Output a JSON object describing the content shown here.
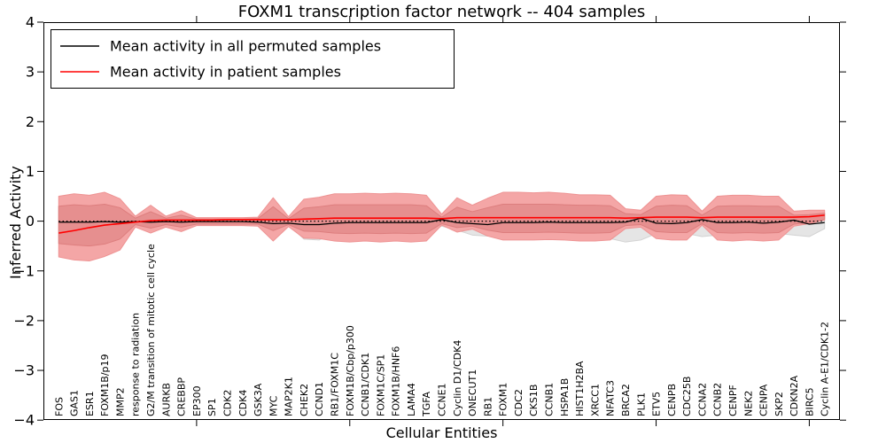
{
  "figure": {
    "title": "FOXM1 transcription factor network -- 404 samples"
  },
  "axes": {
    "xlabel": "Cellular Entities",
    "ylabel": "Inferred Activity",
    "yticks": [
      {
        "value": -4,
        "label": "−4"
      },
      {
        "value": -3,
        "label": "−3"
      },
      {
        "value": -2,
        "label": "−2"
      },
      {
        "value": -1,
        "label": "−1"
      },
      {
        "value": 0,
        "label": "0"
      },
      {
        "value": 1,
        "label": "1"
      },
      {
        "value": 2,
        "label": "2"
      },
      {
        "value": 3,
        "label": "3"
      },
      {
        "value": 4,
        "label": "4"
      }
    ],
    "xtick_data_positions": [
      10,
      20,
      30,
      40,
      50
    ]
  },
  "legend": {
    "items": [
      {
        "label": "Mean activity in all permuted samples",
        "color": "#000000"
      },
      {
        "label": "Mean activity in patient samples",
        "color": "#ff0000"
      }
    ]
  },
  "chart_data": {
    "type": "line",
    "title": "FOXM1 transcription factor network -- 404 samples",
    "xlabel": "Cellular Entities",
    "ylabel": "Inferred Activity",
    "ylim": [
      -4,
      4
    ],
    "xlim": [
      0,
      52
    ],
    "grid": false,
    "legend_position": "upper left",
    "categories": [
      "FOS",
      "GAS1",
      "ESR1",
      "FOXM1B/p19",
      "MMP2",
      "response to radiation",
      "G2/M transition of mitotic cell cycle",
      "AURKB",
      "CREBBP",
      "EP300",
      "SP1",
      "CDK2",
      "CDK4",
      "GSK3A",
      "MYC",
      "MAP2K1",
      "CHEK2",
      "CCND1",
      "RB1/FOXM1C",
      "FOXM1B/Cbp/p300",
      "CCNB1/CDK1",
      "FOXM1C/SP1",
      "FOXM1B/HNF6",
      "LAMA4",
      "TGFA",
      "CCNE1",
      "Cyclin D1/CDK4",
      "ONECUT1",
      "RB1",
      "FOXM1",
      "CDC2",
      "CKS1B",
      "CCNB1",
      "HSPA1B",
      "HIST1H2BA",
      "XRCC1",
      "NFATC3",
      "BRCA2",
      "PLK1",
      "ETV5",
      "CENPB",
      "CDC25B",
      "CCNA2",
      "CCNB2",
      "CENPF",
      "NEK2",
      "CENPA",
      "SKP2",
      "CDKN2A",
      "BIRC5",
      "Cyclin A-E1/CDK1-2"
    ],
    "series": [
      {
        "name": "Mean activity in all permuted samples",
        "color": "#000000",
        "style": "solid",
        "values": [
          -0.02,
          -0.02,
          -0.02,
          -0.01,
          -0.02,
          -0.01,
          -0.02,
          -0.01,
          -0.02,
          -0.01,
          -0.01,
          -0.01,
          -0.01,
          -0.02,
          -0.05,
          -0.04,
          -0.07,
          -0.07,
          -0.04,
          -0.03,
          -0.03,
          -0.03,
          -0.03,
          -0.03,
          -0.03,
          0.03,
          -0.03,
          -0.05,
          -0.07,
          -0.03,
          -0.03,
          -0.03,
          -0.02,
          -0.03,
          -0.03,
          -0.03,
          -0.03,
          -0.02,
          0.06,
          -0.04,
          -0.05,
          -0.03,
          0.03,
          -0.03,
          -0.03,
          -0.02,
          -0.04,
          -0.02,
          0.02,
          -0.06,
          -0.03
        ]
      },
      {
        "name": "Mean activity in patient samples",
        "color": "#ff0000",
        "style": "solid",
        "values": [
          -0.24,
          -0.19,
          -0.13,
          -0.08,
          -0.05,
          -0.02,
          0.01,
          0.02,
          0.02,
          0.02,
          0.02,
          0.03,
          0.03,
          0.03,
          0.03,
          0.03,
          0.04,
          0.05,
          0.06,
          0.06,
          0.06,
          0.06,
          0.06,
          0.06,
          0.06,
          0.05,
          0.07,
          0.07,
          0.07,
          0.07,
          0.07,
          0.07,
          0.07,
          0.07,
          0.07,
          0.07,
          0.07,
          0.06,
          0.07,
          0.08,
          0.08,
          0.08,
          0.07,
          0.08,
          0.08,
          0.08,
          0.08,
          0.08,
          0.08,
          0.09,
          0.12
        ]
      }
    ],
    "reference_line": {
      "y": 0,
      "color": "#000000",
      "style": "dotted"
    },
    "bands": [
      {
        "name": "permuted samples range",
        "fill": "#e5e5e5",
        "edge": "#d2d2d2",
        "top": [
          0.3,
          0.32,
          0.32,
          0.32,
          0.28,
          0.1,
          0.15,
          0.1,
          0.12,
          0.06,
          0.06,
          0.06,
          0.06,
          0.06,
          0.15,
          0.06,
          0.18,
          0.18,
          0.16,
          0.15,
          0.15,
          0.15,
          0.15,
          0.15,
          0.14,
          0.1,
          0.12,
          0.12,
          0.14,
          0.15,
          0.15,
          0.15,
          0.15,
          0.15,
          0.15,
          0.15,
          0.14,
          0.12,
          0.12,
          0.14,
          0.15,
          0.14,
          0.12,
          0.14,
          0.15,
          0.14,
          0.14,
          0.14,
          0.12,
          0.12,
          0.15
        ],
        "bottom": [
          -0.32,
          -0.34,
          -0.34,
          -0.33,
          -0.3,
          -0.1,
          -0.15,
          -0.1,
          -0.12,
          -0.06,
          -0.06,
          -0.06,
          -0.06,
          -0.07,
          -0.15,
          -0.07,
          -0.36,
          -0.38,
          -0.22,
          -0.22,
          -0.22,
          -0.22,
          -0.22,
          -0.22,
          -0.2,
          -0.1,
          -0.18,
          -0.28,
          -0.3,
          -0.22,
          -0.22,
          -0.22,
          -0.22,
          -0.22,
          -0.38,
          -0.4,
          -0.35,
          -0.42,
          -0.38,
          -0.25,
          -0.25,
          -0.25,
          -0.31,
          -0.28,
          -0.28,
          -0.25,
          -0.28,
          -0.25,
          -0.28,
          -0.31,
          -0.15
        ]
      },
      {
        "name": "patient samples outer range",
        "fill": "#f4a6a6",
        "edge": "#ee9393",
        "top": [
          0.5,
          0.55,
          0.52,
          0.58,
          0.45,
          0.1,
          0.32,
          0.1,
          0.21,
          0.07,
          0.07,
          0.07,
          0.07,
          0.08,
          0.47,
          0.09,
          0.44,
          0.48,
          0.55,
          0.55,
          0.56,
          0.55,
          0.56,
          0.55,
          0.52,
          0.14,
          0.47,
          0.32,
          0.46,
          0.58,
          0.58,
          0.57,
          0.58,
          0.56,
          0.53,
          0.53,
          0.52,
          0.25,
          0.22,
          0.5,
          0.53,
          0.52,
          0.2,
          0.5,
          0.52,
          0.52,
          0.5,
          0.5,
          0.2,
          0.22,
          0.22
        ],
        "bottom": [
          -0.72,
          -0.78,
          -0.8,
          -0.71,
          -0.58,
          -0.12,
          -0.24,
          -0.12,
          -0.21,
          -0.09,
          -0.09,
          -0.09,
          -0.09,
          -0.1,
          -0.4,
          -0.11,
          -0.34,
          -0.35,
          -0.4,
          -0.42,
          -0.4,
          -0.42,
          -0.4,
          -0.42,
          -0.4,
          -0.08,
          -0.22,
          -0.16,
          -0.3,
          -0.38,
          -0.38,
          -0.38,
          -0.37,
          -0.38,
          -0.4,
          -0.4,
          -0.38,
          -0.15,
          -0.12,
          -0.35,
          -0.38,
          -0.38,
          -0.08,
          -0.38,
          -0.4,
          -0.38,
          -0.4,
          -0.38,
          -0.1,
          -0.05,
          0.02
        ]
      },
      {
        "name": "patient samples inner range",
        "fill": "#e68f8f",
        "edge": "#dd7e7e",
        "top": [
          0.3,
          0.33,
          0.31,
          0.34,
          0.27,
          0.06,
          0.19,
          0.06,
          0.12,
          0.04,
          0.04,
          0.04,
          0.04,
          0.05,
          0.29,
          0.05,
          0.26,
          0.29,
          0.33,
          0.33,
          0.33,
          0.33,
          0.33,
          0.33,
          0.31,
          0.08,
          0.28,
          0.19,
          0.27,
          0.34,
          0.34,
          0.34,
          0.34,
          0.33,
          0.32,
          0.32,
          0.31,
          0.15,
          0.13,
          0.3,
          0.32,
          0.31,
          0.12,
          0.3,
          0.31,
          0.31,
          0.3,
          0.3,
          0.12,
          0.13,
          0.16
        ],
        "bottom": [
          -0.45,
          -0.48,
          -0.5,
          -0.46,
          -0.36,
          -0.07,
          -0.14,
          -0.07,
          -0.12,
          -0.06,
          -0.06,
          -0.06,
          -0.06,
          -0.06,
          -0.19,
          -0.07,
          -0.2,
          -0.21,
          -0.24,
          -0.25,
          -0.24,
          -0.25,
          -0.24,
          -0.25,
          -0.24,
          -0.05,
          -0.13,
          -0.1,
          -0.18,
          -0.23,
          -0.23,
          -0.23,
          -0.22,
          -0.23,
          -0.24,
          -0.24,
          -0.23,
          -0.09,
          -0.07,
          -0.21,
          -0.23,
          -0.23,
          -0.05,
          -0.23,
          -0.24,
          -0.23,
          -0.24,
          -0.23,
          -0.06,
          -0.03,
          0.04
        ]
      }
    ]
  }
}
